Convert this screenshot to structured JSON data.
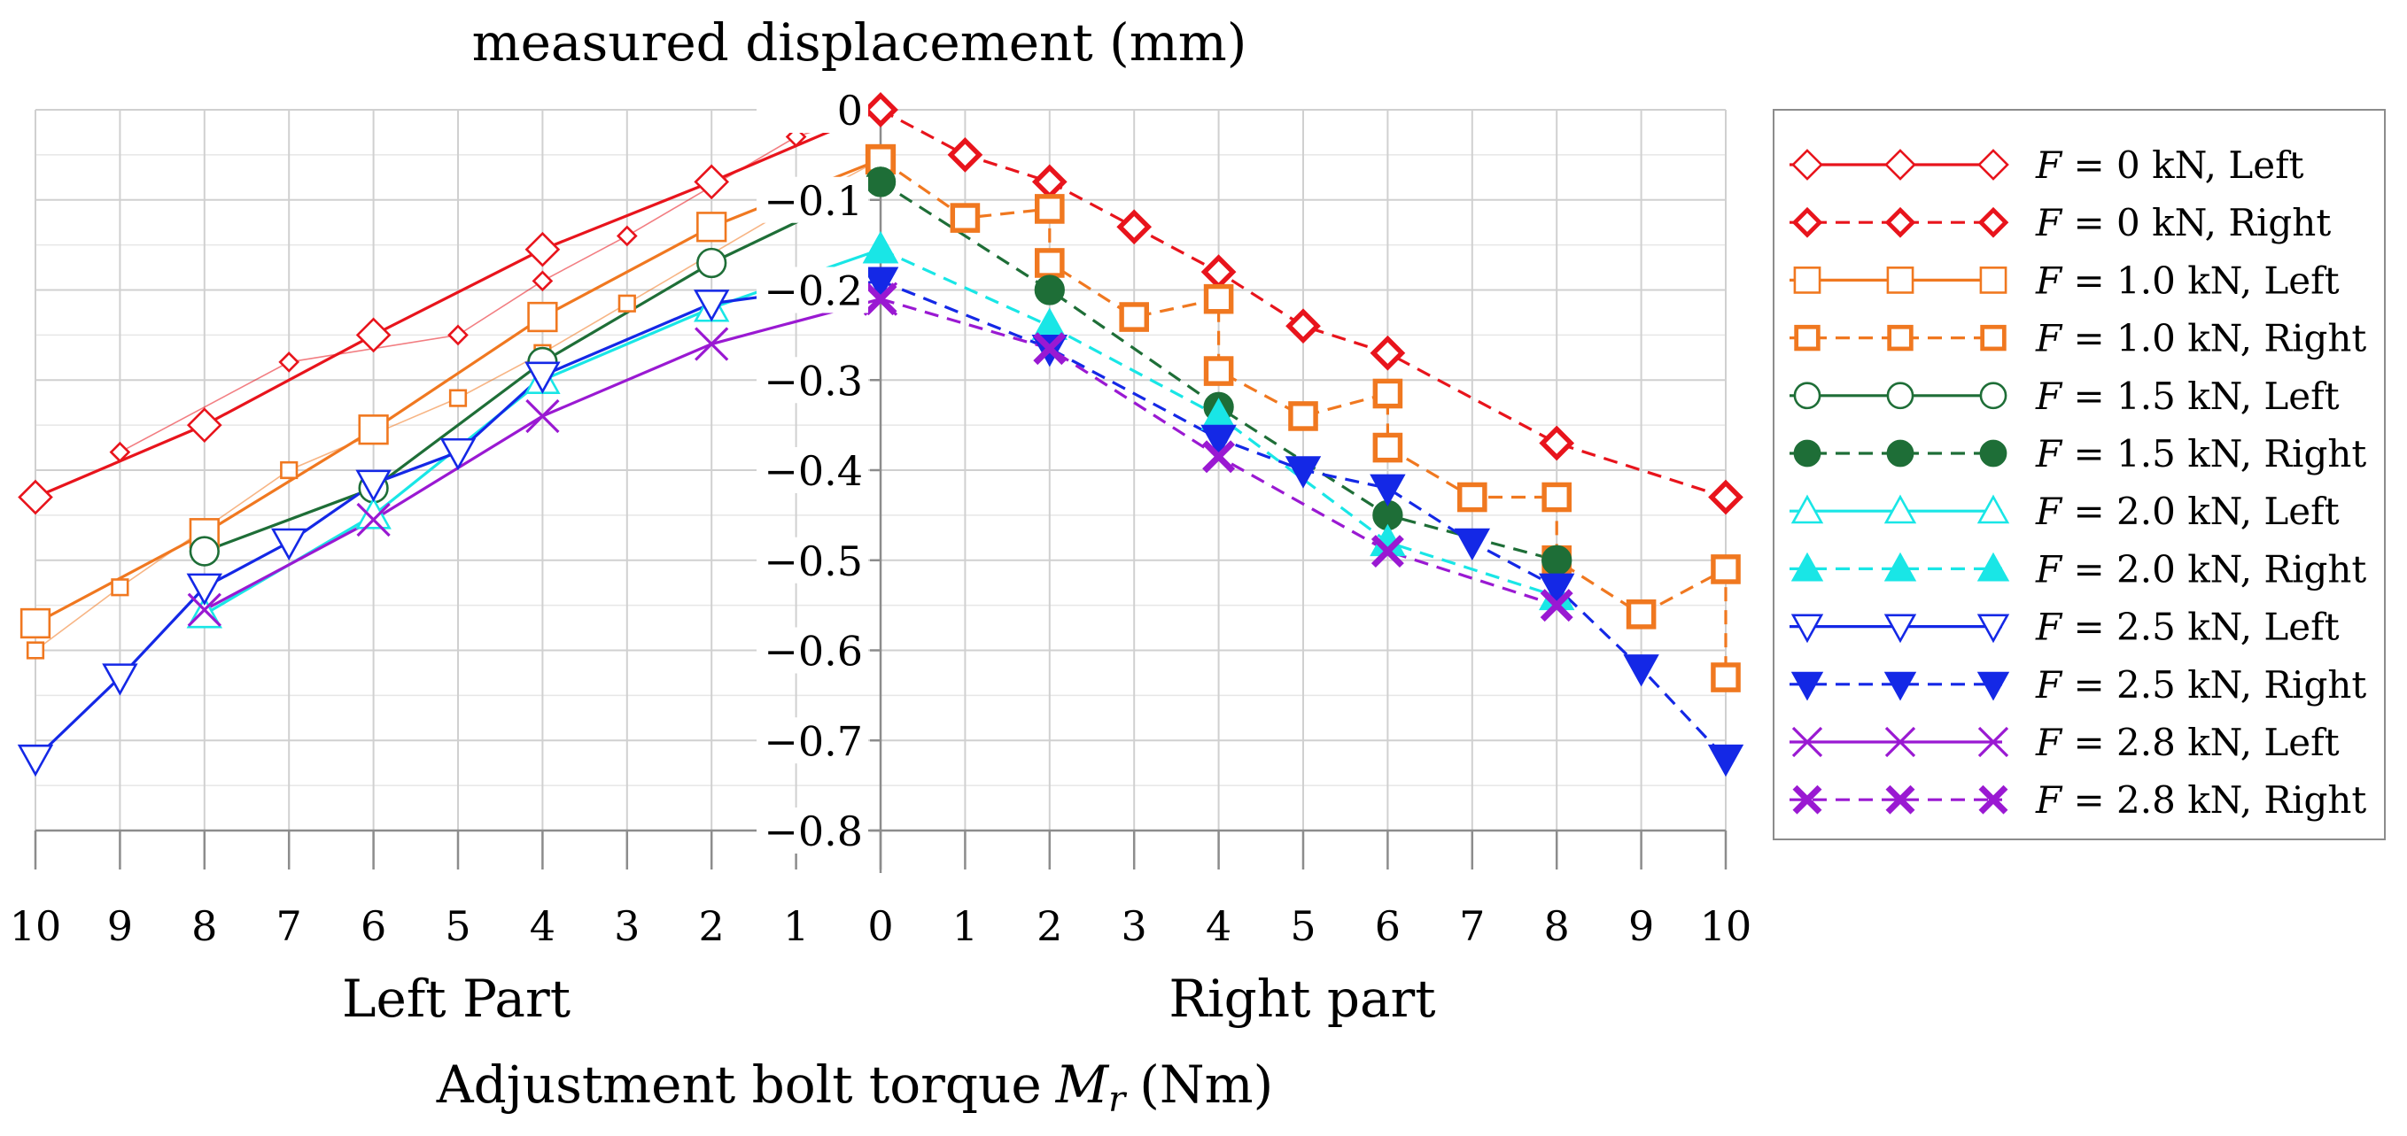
{
  "chart_data": {
    "type": "line",
    "title": "measured displacement  (mm)",
    "xlabel": "Adjustment bolt torque",
    "xlabel_symbol": "M",
    "xlabel_subscript": "r",
    "xlabel_unit": "(Nm)",
    "part_labels": {
      "left": "Left Part",
      "right": "Right part"
    },
    "x_tick_labels": [
      "10",
      "9",
      "8",
      "7",
      "6",
      "5",
      "4",
      "3",
      "2",
      "1",
      "0",
      "1",
      "2",
      "3",
      "4",
      "5",
      "6",
      "7",
      "8",
      "9",
      "10"
    ],
    "ylim": [
      -0.8,
      0
    ],
    "y_ticks": [
      0,
      -0.1,
      -0.2,
      -0.3,
      -0.4,
      -0.5,
      -0.6,
      -0.7,
      -0.8
    ],
    "y_tick_labels": [
      "0",
      "−0.1",
      "−0.2",
      "−0.3",
      "−0.4",
      "−0.5",
      "−0.6",
      "−0.7",
      "−0.8"
    ],
    "grid": true,
    "legend_position": "right",
    "legend_prefix": "F",
    "series": [
      {
        "name": "= 0 kN, Left",
        "side": "left",
        "color": "#e8141c",
        "marker": "diamond",
        "fill": "none",
        "dash": false,
        "points": [
          [
            10,
            -0.43
          ],
          [
            8,
            -0.35
          ],
          [
            6,
            -0.25
          ],
          [
            4,
            -0.155
          ],
          [
            2,
            -0.08
          ],
          [
            0,
            0
          ]
        ],
        "odd_points": [
          [
            9,
            -0.38
          ],
          [
            7,
            -0.28
          ],
          [
            5,
            -0.25
          ],
          [
            4,
            -0.19
          ],
          [
            3,
            -0.14
          ],
          [
            1,
            -0.03
          ],
          [
            0,
            0
          ]
        ]
      },
      {
        "name": "= 0 kN, Right",
        "side": "right",
        "color": "#e8141c",
        "marker": "diamond",
        "fill": "thick",
        "dash": true,
        "points": [
          [
            0,
            0
          ],
          [
            1,
            -0.05
          ],
          [
            2,
            -0.08
          ],
          [
            3,
            -0.13
          ],
          [
            4,
            -0.18
          ],
          [
            5,
            -0.24
          ],
          [
            6,
            -0.27
          ],
          [
            8,
            -0.37
          ],
          [
            10,
            -0.43
          ]
        ]
      },
      {
        "name": "= 1.0 kN, Left",
        "side": "left",
        "color": "#f07820",
        "marker": "square",
        "fill": "none",
        "dash": false,
        "points": [
          [
            10,
            -0.57
          ],
          [
            8,
            -0.47
          ],
          [
            6,
            -0.355
          ],
          [
            4,
            -0.23
          ],
          [
            2,
            -0.13
          ],
          [
            0,
            -0.055
          ]
        ],
        "odd_points": [
          [
            10,
            -0.6
          ],
          [
            9,
            -0.53
          ],
          [
            7,
            -0.4
          ],
          [
            6,
            -0.36
          ],
          [
            5,
            -0.32
          ],
          [
            4,
            -0.27
          ],
          [
            3,
            -0.215
          ],
          [
            1,
            -0.105
          ],
          [
            0,
            -0.055
          ]
        ]
      },
      {
        "name": "= 1.0 kN, Right",
        "side": "right",
        "color": "#f07820",
        "marker": "square",
        "fill": "thick",
        "dash": true,
        "points": [
          [
            0,
            -0.055
          ],
          [
            1,
            -0.12
          ],
          [
            2,
            -0.11
          ],
          [
            2,
            -0.17
          ],
          [
            3,
            -0.23
          ],
          [
            4,
            -0.21
          ],
          [
            4,
            -0.29
          ],
          [
            5,
            -0.34
          ],
          [
            6,
            -0.315
          ],
          [
            6,
            -0.375
          ],
          [
            7,
            -0.43
          ],
          [
            8,
            -0.43
          ],
          [
            8,
            -0.5
          ],
          [
            9,
            -0.56
          ],
          [
            10,
            -0.51
          ],
          [
            10,
            -0.63
          ]
        ]
      },
      {
        "name": "= 1.5 kN, Left",
        "side": "left",
        "color": "#1e6e37",
        "marker": "circle",
        "fill": "none",
        "dash": false,
        "points": [
          [
            8,
            -0.49
          ],
          [
            6,
            -0.42
          ],
          [
            4,
            -0.28
          ],
          [
            2,
            -0.17
          ],
          [
            0,
            -0.08
          ]
        ]
      },
      {
        "name": "= 1.5 kN, Right",
        "side": "right",
        "color": "#1e6e37",
        "marker": "circle",
        "fill": "solid",
        "dash": true,
        "points": [
          [
            0,
            -0.08
          ],
          [
            2,
            -0.2
          ],
          [
            4,
            -0.33
          ],
          [
            6,
            -0.45
          ],
          [
            8,
            -0.5
          ]
        ]
      },
      {
        "name": "= 2.0 kN, Left",
        "side": "left",
        "color": "#19e6e6",
        "marker": "triangle-up",
        "fill": "none",
        "dash": false,
        "points": [
          [
            8,
            -0.56
          ],
          [
            6,
            -0.45
          ],
          [
            4,
            -0.3
          ],
          [
            2,
            -0.22
          ],
          [
            0,
            -0.155
          ]
        ]
      },
      {
        "name": "= 2.0 kN, Right",
        "side": "right",
        "color": "#19e6e6",
        "marker": "triangle-up",
        "fill": "solid",
        "dash": true,
        "points": [
          [
            0,
            -0.155
          ],
          [
            2,
            -0.24
          ],
          [
            4,
            -0.34
          ],
          [
            6,
            -0.48
          ],
          [
            8,
            -0.54
          ]
        ]
      },
      {
        "name": "= 2.5 kN, Left",
        "side": "left",
        "color": "#1428e6",
        "marker": "triangle-down",
        "fill": "none",
        "dash": false,
        "points": [
          [
            10,
            -0.72
          ],
          [
            9,
            -0.63
          ],
          [
            8,
            -0.53
          ],
          [
            7,
            -0.48
          ],
          [
            6,
            -0.415
          ],
          [
            5,
            -0.38
          ],
          [
            4,
            -0.295
          ],
          [
            2,
            -0.215
          ],
          [
            0,
            -0.19
          ]
        ]
      },
      {
        "name": "= 2.5 kN, Right",
        "side": "right",
        "color": "#1428e6",
        "marker": "triangle-down",
        "fill": "solid",
        "dash": true,
        "points": [
          [
            0,
            -0.19
          ],
          [
            2,
            -0.265
          ],
          [
            4,
            -0.365
          ],
          [
            5,
            -0.4
          ],
          [
            6,
            -0.42
          ],
          [
            7,
            -0.48
          ],
          [
            8,
            -0.53
          ],
          [
            9,
            -0.62
          ],
          [
            10,
            -0.72
          ]
        ]
      },
      {
        "name": "= 2.8 kN, Left",
        "side": "left",
        "color": "#9a19d2",
        "marker": "cross",
        "fill": "none",
        "dash": false,
        "points": [
          [
            8,
            -0.555
          ],
          [
            6,
            -0.455
          ],
          [
            4,
            -0.34
          ],
          [
            2,
            -0.26
          ],
          [
            0,
            -0.21
          ]
        ]
      },
      {
        "name": "= 2.8 kN, Right",
        "side": "right",
        "color": "#9a19d2",
        "marker": "cross",
        "fill": "thick",
        "dash": true,
        "points": [
          [
            0,
            -0.21
          ],
          [
            2,
            -0.265
          ],
          [
            4,
            -0.385
          ],
          [
            6,
            -0.49
          ],
          [
            8,
            -0.55
          ]
        ]
      }
    ]
  }
}
